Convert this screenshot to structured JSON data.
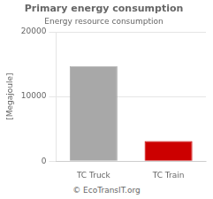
{
  "chart_data": {
    "type": "bar",
    "title": "Primary energy consumption",
    "subtitle": "Energy resource consumption",
    "ylabel": "[Megajoule]",
    "footer": "© EcoTransIT.org",
    "categories": [
      "TC Truck",
      "TC Train"
    ],
    "values": [
      14700,
      3100
    ],
    "colors": [
      "#a8a8a8",
      "#cc0000"
    ],
    "ylim": [
      0,
      20000
    ],
    "yticks": [
      0,
      10000,
      20000
    ],
    "grid": true
  }
}
